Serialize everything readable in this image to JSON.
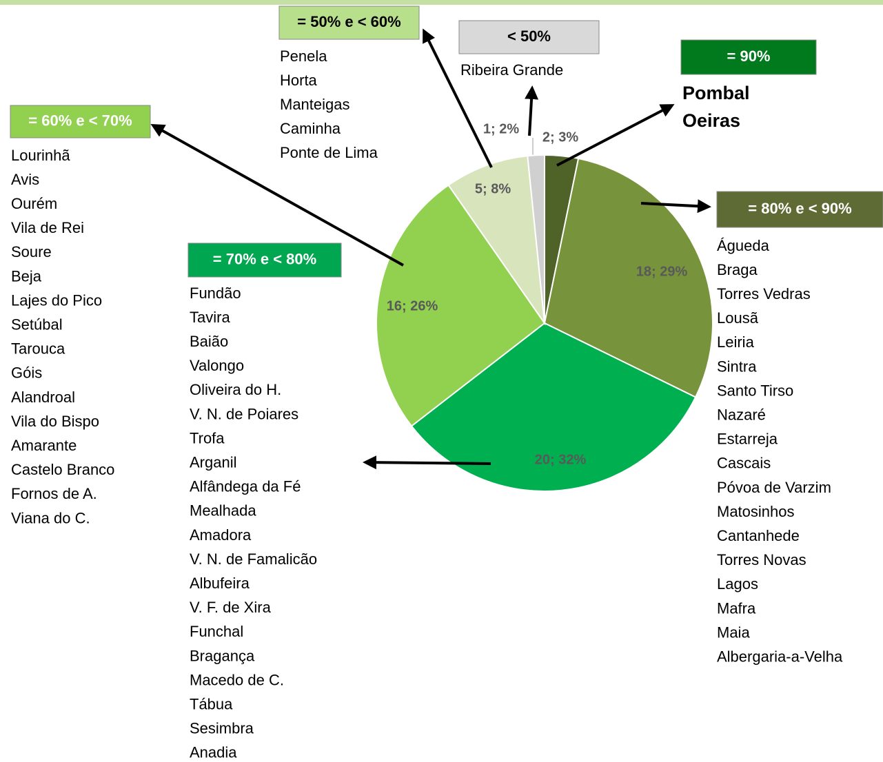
{
  "chart_data": {
    "type": "pie",
    "categories": [
      "= 90%",
      "= 80% e < 90%",
      "= 70% e < 80%",
      "= 60% e < 70%",
      "= 50% e < 60%",
      "< 50%"
    ],
    "values": [
      2,
      18,
      20,
      16,
      5,
      1
    ],
    "value_labels": [
      "2; 3%",
      "18; 29%",
      "20; 32%",
      "16; 26%",
      "5; 8%",
      "1; 2%"
    ],
    "colors": [
      "#4f6228",
      "#77933c",
      "#00b050",
      "#92d050",
      "#d8e4bc",
      "#d0d0d0"
    ],
    "lists": [
      [
        "Pombal",
        "Oeiras"
      ],
      [
        "Águeda",
        "Braga",
        "Torres Vedras",
        "Lousã",
        "Leiria",
        "Sintra",
        "Santo Tirso",
        "Nazaré",
        "Estarreja",
        "Cascais",
        "Póvoa de Varzim",
        "Matosinhos",
        "Cantanhede",
        "Torres Novas",
        "Lagos",
        "Mafra",
        "Maia",
        "Albergaria-a-Velha"
      ],
      [
        "Fundão",
        "Tavira",
        "Baião",
        "Valongo",
        "Oliveira do H.",
        "V. N. de Poiares",
        "Trofa",
        "Arganil",
        "Alfândega da Fé",
        "Mealhada",
        "Amadora",
        "V. N. de Famalicão",
        "Albufeira",
        "V. F. de Xira",
        "Funchal",
        "Bragança",
        "Macedo de C.",
        "Tábua",
        "Sesimbra",
        "Anadia"
      ],
      [
        "Lourinhã",
        "Avis",
        "Ourém",
        "Vila de Rei",
        "Soure",
        "Beja",
        "Lajes do Pico",
        "Setúbal",
        "Tarouca",
        "Góis",
        "Alandroal",
        "Vila do Bispo",
        "Amarante",
        "Castelo Branco",
        "Fornos de A.",
        "Viana do C."
      ],
      [
        "Penela",
        "Horta",
        "Manteigas",
        "Caminha",
        "Ponte de Lima"
      ],
      [
        "Ribeira Grande"
      ]
    ]
  }
}
